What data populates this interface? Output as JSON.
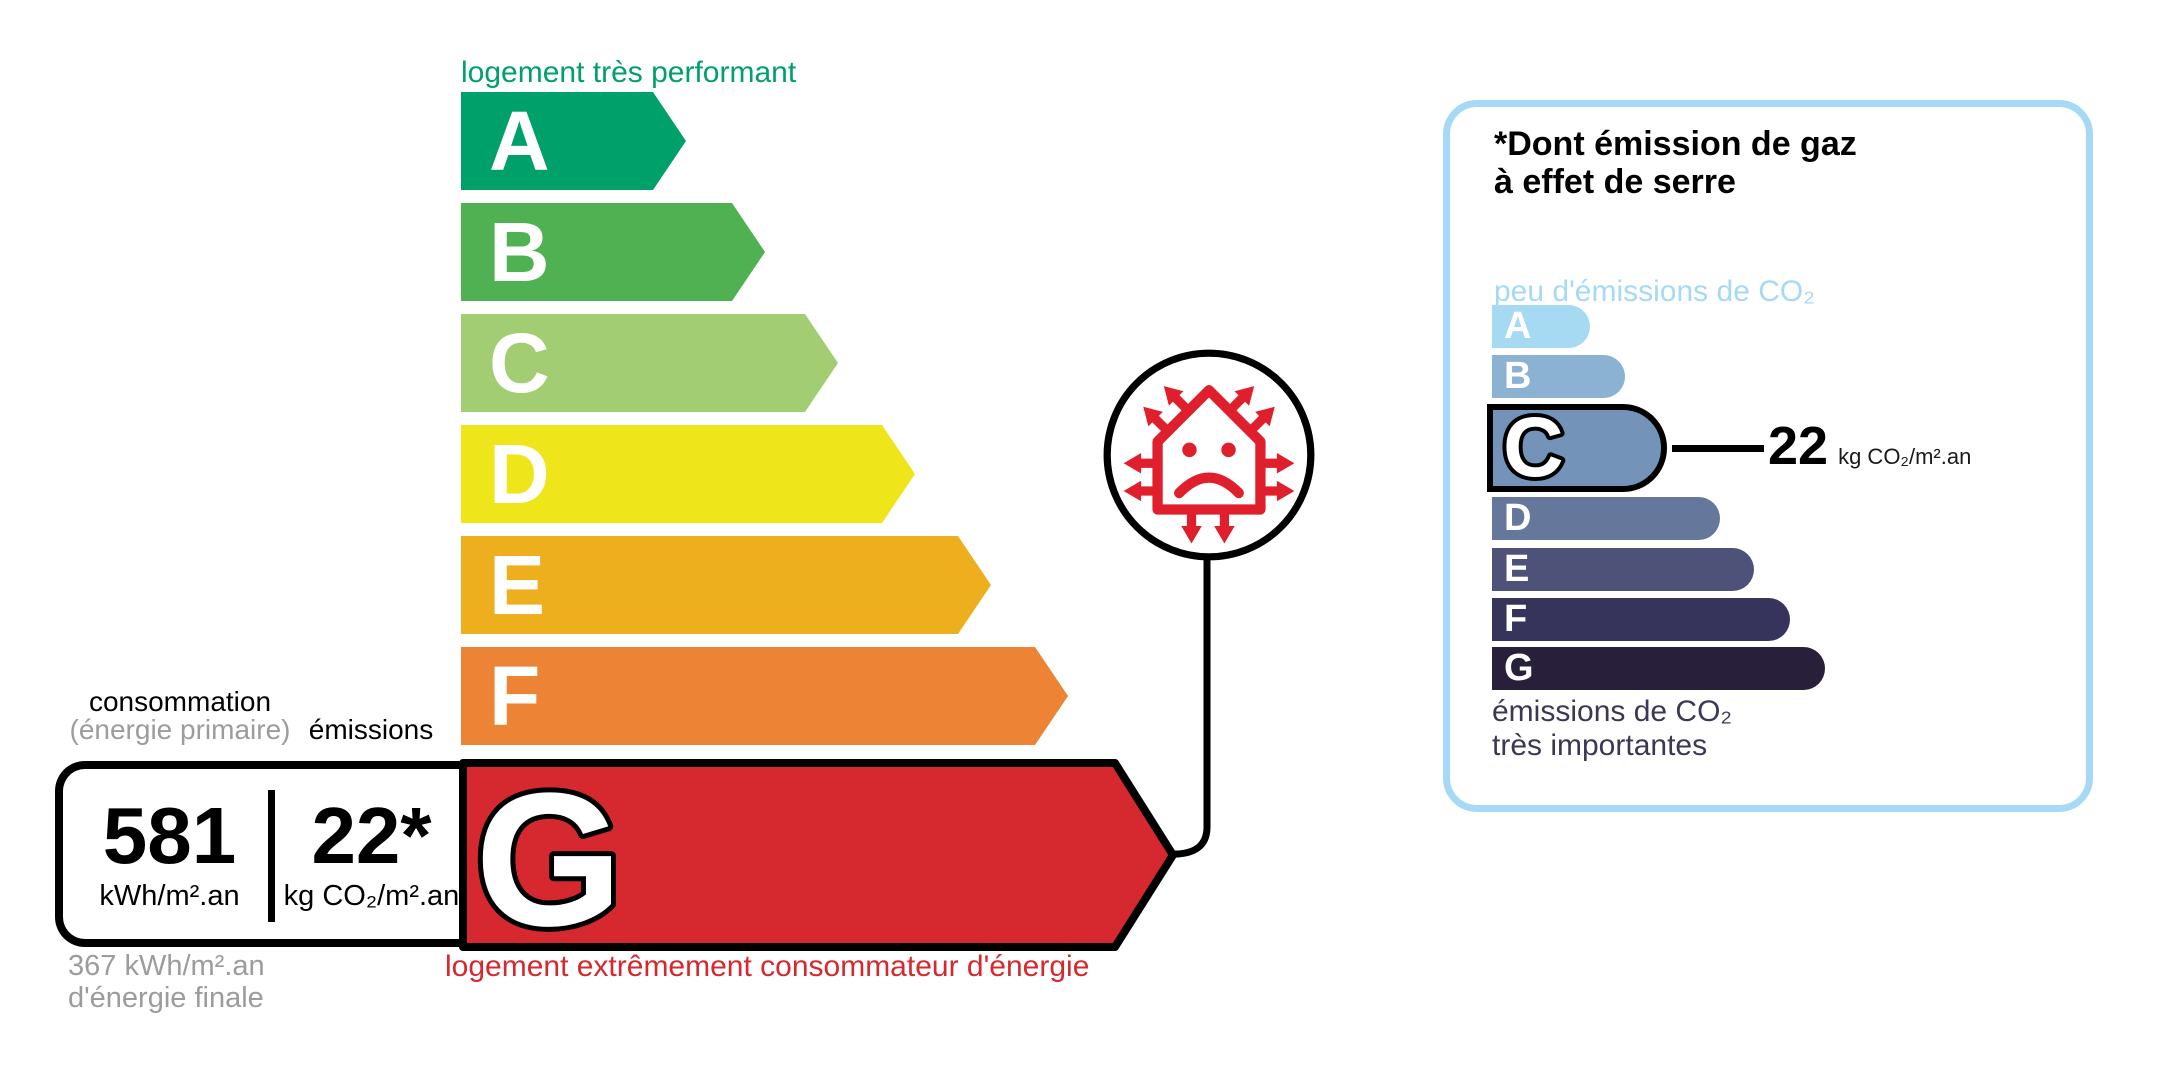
{
  "energy_scale": {
    "top_label": "logement très performant",
    "bottom_label": "logement extrêmement consommateur d'énergie",
    "classes": [
      {
        "label": "A",
        "color": "#00a06b",
        "length": 225
      },
      {
        "label": "B",
        "color": "#50b153",
        "length": 304
      },
      {
        "label": "C",
        "color": "#a2cd73",
        "length": 377
      },
      {
        "label": "D",
        "color": "#efe51b",
        "length": 454
      },
      {
        "label": "E",
        "color": "#eeaf1e",
        "length": 530
      },
      {
        "label": "F",
        "color": "#ec8335",
        "length": 607
      }
    ],
    "current": {
      "class": "G",
      "color": "#d5282f",
      "consumption_value": "581",
      "consumption_unit": "kWh/m².an",
      "emission_value": "22*",
      "emission_unit": "kg CO₂/m².an"
    },
    "header": {
      "consumption_line1": "consommation",
      "consumption_line2": "(énergie primaire)",
      "emissions": "émissions"
    },
    "final_energy": {
      "line1": "367 kWh/m².an",
      "line2": "d'énergie finale"
    }
  },
  "co2_scale": {
    "title_line1": "*Dont émission de gaz",
    "title_line2": "à effet de serre",
    "top_label": "peu d'émissions de CO₂",
    "bottom_label_line1": "émissions de CO₂",
    "bottom_label_line2": "très importantes",
    "classes": [
      {
        "label": "A",
        "color": "#a6d9f2",
        "length": 98,
        "highlight": false
      },
      {
        "label": "B",
        "color": "#8bb2d3",
        "length": 133,
        "highlight": false
      },
      {
        "label": "C",
        "color": "#7493b8",
        "length": 180,
        "highlight": true
      },
      {
        "label": "D",
        "color": "#66779c",
        "length": 228,
        "highlight": false
      },
      {
        "label": "E",
        "color": "#4e5278",
        "length": 262,
        "highlight": false
      },
      {
        "label": "F",
        "color": "#37345c",
        "length": 298,
        "highlight": false
      },
      {
        "label": "G",
        "color": "#281f3b",
        "length": 333,
        "highlight": false
      }
    ],
    "current": {
      "class": "C",
      "value": "22",
      "unit": "kg CO₂/m².an"
    }
  },
  "icons": {
    "sad_house": "sad-house-heat-loss-icon",
    "icon_color": "#e01f2d"
  },
  "palette": {
    "top_label_green": "#00a06b",
    "bottom_label_red": "#d5282f",
    "gray_text": "#9c9c9b",
    "panel_border_blue": "#a6d9f5",
    "panel_dark_text": "#3b3853",
    "black": "#000000"
  },
  "chart_data": [
    {
      "type": "bar",
      "title": "Étiquette énergie (DPE)",
      "categories": [
        "A",
        "B",
        "C",
        "D",
        "E",
        "F",
        "G"
      ],
      "values": [
        225,
        304,
        377,
        454,
        530,
        607,
        712
      ],
      "values_note": "decorative bar lengths in px, A=best to G=worst",
      "annotations": {
        "selected_class": "G",
        "consumption_primary_kwh_m2_an": 581,
        "final_energy_kwh_m2_an": 367,
        "emissions_kg_co2_m2_an": 22,
        "top_caption": "logement très performant",
        "bottom_caption": "logement extrêmement consommateur d'énergie"
      },
      "legend_position": "none",
      "grid": false
    },
    {
      "type": "bar",
      "title": "Étiquette climat — *Dont émission de gaz à effet de serre",
      "categories": [
        "A",
        "B",
        "C",
        "D",
        "E",
        "F",
        "G"
      ],
      "values": [
        98,
        133,
        180,
        228,
        262,
        298,
        333
      ],
      "values_note": "decorative bar lengths in px",
      "annotations": {
        "selected_class": "C",
        "value_kg_co2_m2_an": 22,
        "top_caption": "peu d'émissions de CO₂",
        "bottom_caption": "émissions de CO₂ très importantes"
      },
      "legend_position": "none",
      "grid": false
    }
  ]
}
